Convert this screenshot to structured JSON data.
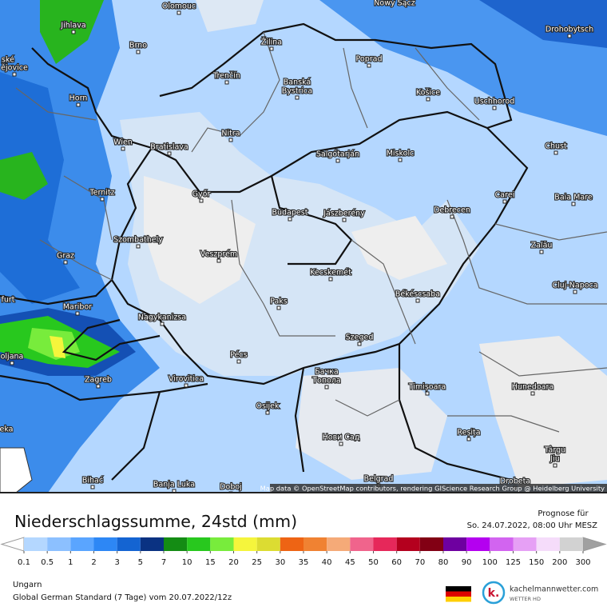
{
  "map": {
    "cities": [
      "Olomouc",
      "Nowy Sącz",
      "Jihlava",
      "Brno",
      "Žilina",
      "Poprad",
      "Drohobytsch",
      "ské",
      "ějovice",
      "Trenčín",
      "Banská",
      "Bystrica",
      "Košice",
      "Uschhorod",
      "Horn",
      "Nitra",
      "Wien",
      "Bratislava",
      "Salgótarján",
      "Miskolc",
      "Chust",
      "Ternitz",
      "Győr",
      "Carei",
      "Baia Mare",
      "Budapest",
      "Jászberény",
      "Debrecen",
      "Szombathely",
      "Zalău",
      "Graz",
      "Veszprém",
      "Kecskemét",
      "Cluj-Napoca",
      "furt",
      "Maribor",
      "Paks",
      "Békéscsaba",
      "Nagykanizsa",
      "Szeged",
      "oljana",
      "Pécs",
      "Zagreb",
      "Virovitica",
      "Бачка",
      "Топола",
      "Timișoara",
      "Hunedoara",
      "Osijek",
      "eka",
      "Нови Сад",
      "Reșița",
      "Târgu",
      "Jiu",
      "Bihać",
      "Banja Luka",
      "Doboj",
      "Belgrad",
      "Drobeta"
    ],
    "attribution": "Map data © OpenStreetMap contributors, rendering GIScience Research Group @ Heidelberg University"
  },
  "legend": {
    "title": "Niederschlagssumme, 24std (mm)",
    "forecast_label": "Prognose für",
    "forecast_date": "So. 24.07.2022, 08:00 Uhr MESZ",
    "ticks": [
      0.1,
      0.5,
      1,
      2,
      3,
      5,
      7,
      10,
      15,
      20,
      25,
      30,
      35,
      40,
      45,
      50,
      60,
      70,
      80,
      90,
      100,
      125,
      150,
      200,
      300
    ],
    "colors": [
      "#b4d7ff",
      "#8cc0ff",
      "#5aa5ff",
      "#2d87f5",
      "#1464d2",
      "#0a3282",
      "#148c14",
      "#28c81e",
      "#78ec3c",
      "#f5f53c",
      "#dcdc32",
      "#ee6414",
      "#f08232",
      "#f5aa78",
      "#f0648c",
      "#e6285a",
      "#b4001e",
      "#820014",
      "#6e00a0",
      "#b400f0",
      "#d264f0",
      "#e6a0f5",
      "#f5dcfa",
      "#d2d2d2"
    ],
    "under_color": "#ffffff",
    "over_color": "#a0a0a0"
  },
  "footer": {
    "region": "Ungarn",
    "model": "Global German Standard (7 Tage)  vom  20.07.2022/12z",
    "logo_name": "kachelmannwetter.com",
    "logo_sub": "WETTER HD"
  }
}
